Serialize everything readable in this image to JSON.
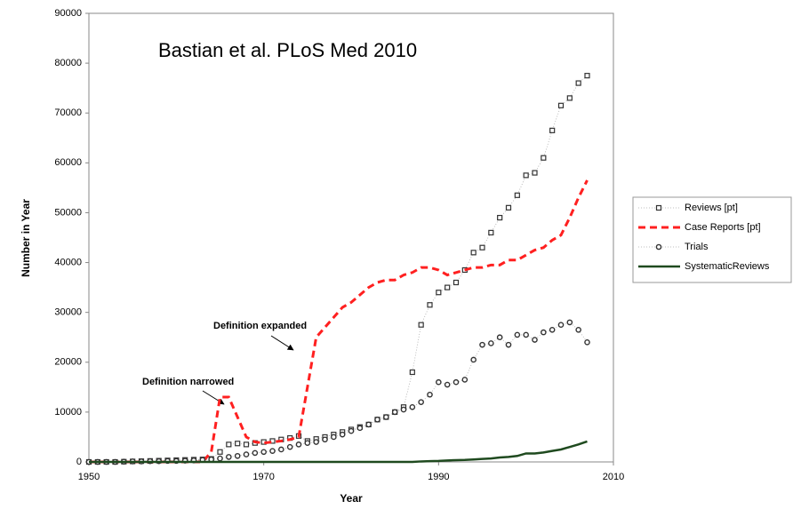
{
  "chart_data": {
    "type": "line",
    "annotation_title": "Bastian et al. PLoS Med 2010",
    "annotations": [
      "Definition narrowed",
      "Definition expanded"
    ],
    "xlabel": "Year",
    "ylabel": "Number in Year",
    "x": [
      1950,
      1951,
      1952,
      1953,
      1954,
      1955,
      1956,
      1957,
      1958,
      1959,
      1960,
      1961,
      1962,
      1963,
      1964,
      1965,
      1966,
      1967,
      1968,
      1969,
      1970,
      1971,
      1972,
      1973,
      1974,
      1975,
      1976,
      1977,
      1978,
      1979,
      1980,
      1981,
      1982,
      1983,
      1984,
      1985,
      1986,
      1987,
      1988,
      1989,
      1990,
      1991,
      1992,
      1993,
      1994,
      1995,
      1996,
      1997,
      1998,
      1999,
      2000,
      2001,
      2002,
      2003,
      2004,
      2005,
      2006,
      2007
    ],
    "series": [
      {
        "name": "Reviews [pt]",
        "color": "#333333",
        "marker": "square",
        "line": "dotted",
        "values": [
          0,
          0,
          0,
          0,
          50,
          100,
          150,
          200,
          250,
          300,
          350,
          400,
          450,
          500,
          600,
          2000,
          3500,
          3700,
          3500,
          3800,
          4000,
          4200,
          4500,
          4800,
          5200,
          4200,
          4600,
          5000,
          5500,
          6000,
          6500,
          7000,
          7500,
          8500,
          9000,
          10000,
          11000,
          18000,
          27500,
          31500,
          34000,
          35000,
          36000,
          38500,
          42000,
          43000,
          46000,
          49000,
          51000,
          53500,
          57500,
          58000,
          61000,
          66500,
          71500,
          73000,
          76000,
          77500
        ]
      },
      {
        "name": "Case Reports [pt]",
        "color": "#ff2020",
        "marker": null,
        "line": "dashed",
        "values": [
          0,
          0,
          0,
          0,
          0,
          0,
          0,
          0,
          0,
          0,
          0,
          0,
          0,
          0,
          2000,
          13000,
          13000,
          9000,
          5000,
          4000,
          3800,
          4000,
          4200,
          4500,
          5000,
          15000,
          25000,
          27000,
          29000,
          31000,
          32000,
          33500,
          35000,
          36000,
          36500,
          36500,
          37500,
          38000,
          39000,
          39000,
          38500,
          37500,
          38000,
          38500,
          39000,
          39000,
          39500,
          39500,
          40500,
          40500,
          41500,
          42500,
          43000,
          44500,
          45500,
          49000,
          53000,
          56500
        ]
      },
      {
        "name": "Trials",
        "color": "#333333",
        "marker": "circle",
        "line": "dotted",
        "values": [
          0,
          0,
          0,
          0,
          50,
          100,
          100,
          150,
          150,
          200,
          200,
          250,
          300,
          400,
          500,
          700,
          1000,
          1200,
          1500,
          1800,
          2000,
          2200,
          2500,
          3000,
          3500,
          3800,
          4000,
          4500,
          5000,
          5500,
          6200,
          6800,
          7500,
          8500,
          9000,
          10000,
          10500,
          11000,
          12000,
          13500,
          16000,
          15500,
          16000,
          16500,
          20500,
          23500,
          23800,
          25000,
          23500,
          25500,
          25500,
          24500,
          26000,
          26500,
          27500,
          28000,
          26500,
          24000
        ]
      },
      {
        "name": "SystematicReviews",
        "color": "#1f4a1f",
        "marker": null,
        "line": "solid",
        "values": [
          0,
          0,
          0,
          0,
          0,
          0,
          0,
          0,
          0,
          0,
          0,
          0,
          0,
          0,
          0,
          0,
          0,
          0,
          0,
          0,
          0,
          0,
          0,
          0,
          0,
          0,
          0,
          0,
          0,
          0,
          0,
          0,
          0,
          0,
          0,
          0,
          0,
          0,
          100,
          150,
          200,
          300,
          350,
          400,
          500,
          600,
          700,
          900,
          1000,
          1200,
          1700,
          1700,
          1900,
          2200,
          2500,
          3000,
          3500,
          4100
        ]
      }
    ],
    "xlim": [
      1950,
      2010
    ],
    "xticks": [
      1950,
      1970,
      1990,
      2010
    ],
    "ylim": [
      0,
      90000
    ],
    "yticks": [
      0,
      10000,
      20000,
      30000,
      40000,
      50000,
      60000,
      70000,
      80000,
      90000
    ],
    "legend": "right"
  }
}
